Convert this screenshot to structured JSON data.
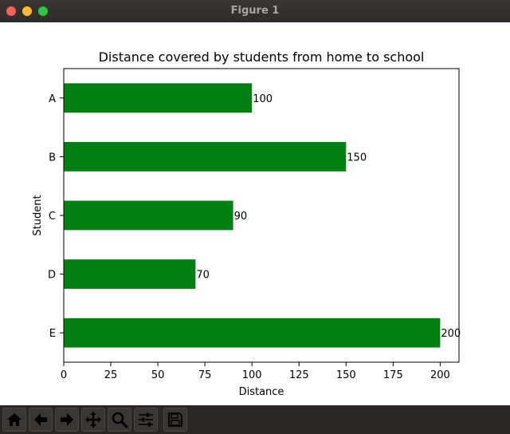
{
  "window": {
    "title": "Figure 1"
  },
  "toolbar": {
    "buttons": [
      {
        "name": "home-icon"
      },
      {
        "name": "back-arrow-icon"
      },
      {
        "name": "forward-arrow-icon"
      },
      {
        "name": "pan-move-icon"
      },
      {
        "name": "zoom-magnifier-icon"
      },
      {
        "name": "configure-subplots-icon"
      },
      {
        "name": "save-floppy-icon"
      }
    ]
  },
  "chart_data": {
    "type": "bar",
    "orientation": "horizontal",
    "title": "Distance covered by students from home to school",
    "xlabel": "Distance",
    "ylabel": "Student",
    "categories": [
      "A",
      "B",
      "C",
      "D",
      "E"
    ],
    "values": [
      100,
      150,
      90,
      70,
      200
    ],
    "data_labels": [
      "100",
      "150",
      "90",
      "70",
      "200"
    ],
    "xlim": [
      0,
      210
    ],
    "xticks": [
      0,
      25,
      50,
      75,
      100,
      125,
      150,
      175,
      200
    ],
    "bar_color": "#008013",
    "grid": false
  }
}
